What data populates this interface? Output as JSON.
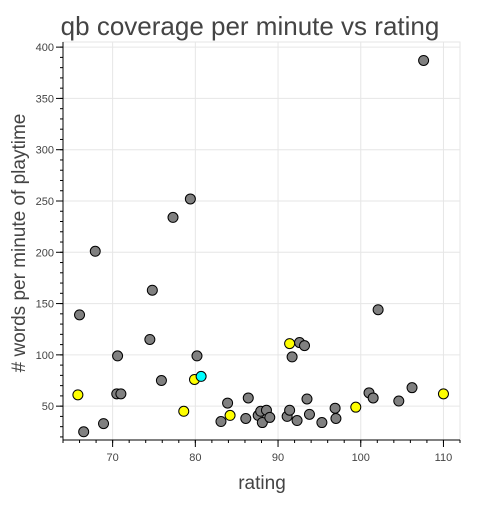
{
  "chart_data": {
    "type": "scatter",
    "title": "qb coverage per minute vs rating",
    "xlabel": "rating",
    "ylabel": "# words per minute of playtime",
    "xlim": [
      64,
      112
    ],
    "ylim": [
      17,
      405
    ],
    "xticks": [
      70,
      80,
      90,
      100,
      110
    ],
    "yticks": [
      50,
      100,
      150,
      200,
      250,
      300,
      350,
      400
    ],
    "grid": true,
    "legend": "none",
    "colors": {
      "gray": "#808080",
      "yellow": "#ffff00",
      "cyan": "#00ffff"
    },
    "points": [
      {
        "x": 66.0,
        "y": 139,
        "color": "gray"
      },
      {
        "x": 66.5,
        "y": 25,
        "color": "gray"
      },
      {
        "x": 67.9,
        "y": 201,
        "color": "gray"
      },
      {
        "x": 68.9,
        "y": 33,
        "color": "gray"
      },
      {
        "x": 70.5,
        "y": 62,
        "color": "gray"
      },
      {
        "x": 70.6,
        "y": 99,
        "color": "gray"
      },
      {
        "x": 71.0,
        "y": 62,
        "color": "gray"
      },
      {
        "x": 74.5,
        "y": 115,
        "color": "gray"
      },
      {
        "x": 74.8,
        "y": 163,
        "color": "gray"
      },
      {
        "x": 75.9,
        "y": 75,
        "color": "gray"
      },
      {
        "x": 77.3,
        "y": 234,
        "color": "gray"
      },
      {
        "x": 79.4,
        "y": 252,
        "color": "gray"
      },
      {
        "x": 80.2,
        "y": 99,
        "color": "gray"
      },
      {
        "x": 83.1,
        "y": 35,
        "color": "gray"
      },
      {
        "x": 83.9,
        "y": 53,
        "color": "gray"
      },
      {
        "x": 86.1,
        "y": 38,
        "color": "gray"
      },
      {
        "x": 86.4,
        "y": 58,
        "color": "gray"
      },
      {
        "x": 87.6,
        "y": 41,
        "color": "gray"
      },
      {
        "x": 87.9,
        "y": 45,
        "color": "gray"
      },
      {
        "x": 88.1,
        "y": 34,
        "color": "gray"
      },
      {
        "x": 88.6,
        "y": 46,
        "color": "gray"
      },
      {
        "x": 89.0,
        "y": 39,
        "color": "gray"
      },
      {
        "x": 91.1,
        "y": 40,
        "color": "gray"
      },
      {
        "x": 91.4,
        "y": 46,
        "color": "gray"
      },
      {
        "x": 91.7,
        "y": 98,
        "color": "gray"
      },
      {
        "x": 92.3,
        "y": 36,
        "color": "gray"
      },
      {
        "x": 92.6,
        "y": 112,
        "color": "gray"
      },
      {
        "x": 93.2,
        "y": 109,
        "color": "gray"
      },
      {
        "x": 93.5,
        "y": 57,
        "color": "gray"
      },
      {
        "x": 93.8,
        "y": 42,
        "color": "gray"
      },
      {
        "x": 95.3,
        "y": 34,
        "color": "gray"
      },
      {
        "x": 96.9,
        "y": 48,
        "color": "gray"
      },
      {
        "x": 97.0,
        "y": 38,
        "color": "gray"
      },
      {
        "x": 101.0,
        "y": 63,
        "color": "gray"
      },
      {
        "x": 101.5,
        "y": 58,
        "color": "gray"
      },
      {
        "x": 102.1,
        "y": 144,
        "color": "gray"
      },
      {
        "x": 104.6,
        "y": 55,
        "color": "gray"
      },
      {
        "x": 106.2,
        "y": 68,
        "color": "gray"
      },
      {
        "x": 107.6,
        "y": 387,
        "color": "gray"
      },
      {
        "x": 65.8,
        "y": 61,
        "color": "yellow"
      },
      {
        "x": 78.6,
        "y": 45,
        "color": "yellow"
      },
      {
        "x": 79.9,
        "y": 76,
        "color": "yellow"
      },
      {
        "x": 84.2,
        "y": 41,
        "color": "yellow"
      },
      {
        "x": 91.4,
        "y": 111,
        "color": "yellow"
      },
      {
        "x": 99.4,
        "y": 49,
        "color": "yellow"
      },
      {
        "x": 110.0,
        "y": 62,
        "color": "yellow"
      },
      {
        "x": 80.7,
        "y": 79,
        "color": "cyan"
      }
    ]
  }
}
